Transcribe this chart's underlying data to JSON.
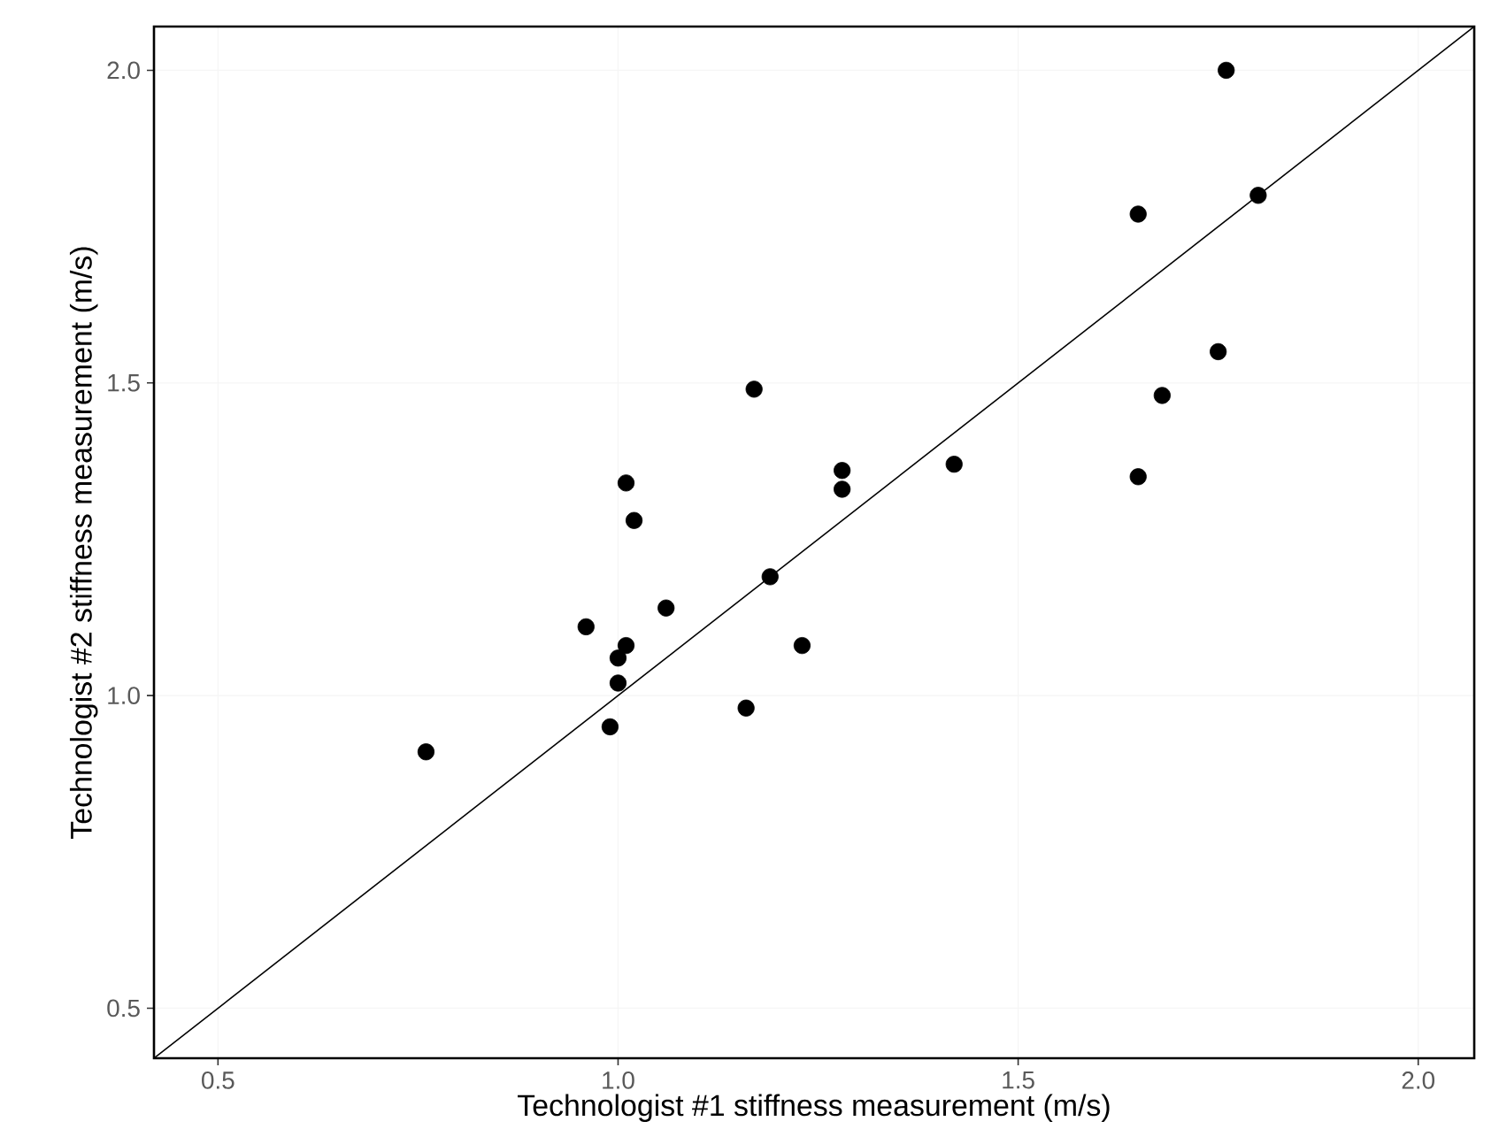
{
  "chart_data": {
    "type": "scatter",
    "xlabel": "Technologist #1  stiffness measurement (m/s)",
    "ylabel": "Technologist #2  stiffness measurement (m/s)",
    "xlim": [
      0.42,
      2.07
    ],
    "ylim": [
      0.42,
      2.07
    ],
    "xticks": [
      0.5,
      {
        "value": 1,
        "label": "1.0"
      },
      1.5,
      {
        "value": 2,
        "label": "2.0"
      }
    ],
    "yticks": [
      0.5,
      {
        "value": 1,
        "label": "1.0"
      },
      1.5,
      {
        "value": 2,
        "label": "2.0"
      }
    ],
    "grid": true,
    "series": [
      {
        "marker": "circle",
        "color": "#000000",
        "x": [
          0.76,
          0.96,
          1.01,
          1.02,
          1.06,
          1.01,
          1.0,
          1.0,
          0.99,
          1.16,
          1.17,
          1.76,
          1.8,
          1.65,
          1.75,
          1.68,
          1.65,
          1.42,
          1.28,
          1.28,
          1.19,
          1.23
        ],
        "values": [
          0.91,
          1.11,
          1.34,
          1.28,
          1.14,
          1.08,
          1.06,
          1.02,
          0.95,
          0.98,
          1.49,
          2.0,
          1.8,
          1.77,
          1.55,
          1.48,
          1.35,
          1.37,
          1.36,
          1.33,
          1.19,
          1.08
        ]
      },
      {
        "type": "line",
        "marker": "none",
        "color": "#000000",
        "x": [
          0.42,
          2.07
        ],
        "values": [
          0.42,
          2.07
        ]
      }
    ]
  }
}
